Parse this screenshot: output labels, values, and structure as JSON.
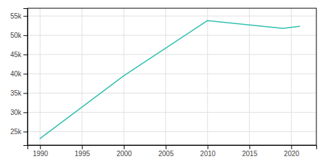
{
  "chart_data": {
    "type": "line",
    "x": [
      1990,
      2000,
      2010,
      2019,
      2021
    ],
    "values": [
      23200,
      39500,
      53800,
      51800,
      52300
    ],
    "color": "#2abfb0",
    "xlim": [
      1988.5,
      2023
    ],
    "ylim": [
      21500,
      57000
    ],
    "xticks": [
      1990,
      1995,
      2000,
      2005,
      2010,
      2015,
      2020
    ],
    "yticks": [
      {
        "value": 25000,
        "label": "25k"
      },
      {
        "value": 30000,
        "label": "30k"
      },
      {
        "value": 35000,
        "label": "35k"
      },
      {
        "value": 40000,
        "label": "40k"
      },
      {
        "value": 45000,
        "label": "45k"
      },
      {
        "value": 50000,
        "label": "50k"
      },
      {
        "value": 55000,
        "label": "55k"
      }
    ],
    "grid": true
  }
}
